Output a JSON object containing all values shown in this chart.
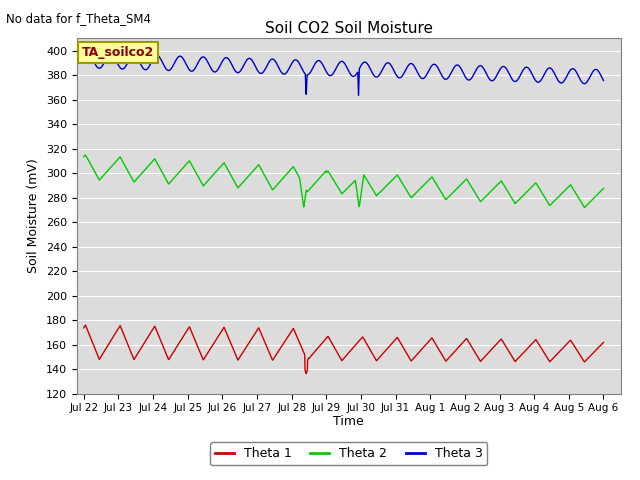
{
  "title": "Soil CO2 Soil Moisture",
  "no_data_text": "No data for f_Theta_SM4",
  "annotation_text": "TA_soilco2",
  "ylabel": "Soil Moisture (mV)",
  "xlabel": "Time",
  "ylim": [
    120,
    410
  ],
  "yticks": [
    120,
    140,
    160,
    180,
    200,
    220,
    240,
    260,
    280,
    300,
    320,
    340,
    360,
    380,
    400
  ],
  "bg_color": "#dcdcdc",
  "fig_color": "#ffffff",
  "theta1_color": "#cc0000",
  "theta2_color": "#00cc00",
  "theta3_color": "#0000cc",
  "legend_labels": [
    "Theta 1",
    "Theta 2",
    "Theta 3"
  ],
  "x_tick_labels": [
    "Jul 22",
    "Jul 23",
    "Jul 24",
    "Jul 25",
    "Jul 26",
    "Jul 27",
    "Jul 28",
    "Jul 29",
    "Jul 30",
    "Jul 31",
    "Aug 1",
    "Aug 2",
    "Aug 3",
    "Aug 4",
    "Aug 5",
    "Aug 6"
  ],
  "n_days": 16,
  "annotation_color": "#8b0000",
  "annotation_bg": "#ffff99",
  "annotation_edge": "#999900"
}
